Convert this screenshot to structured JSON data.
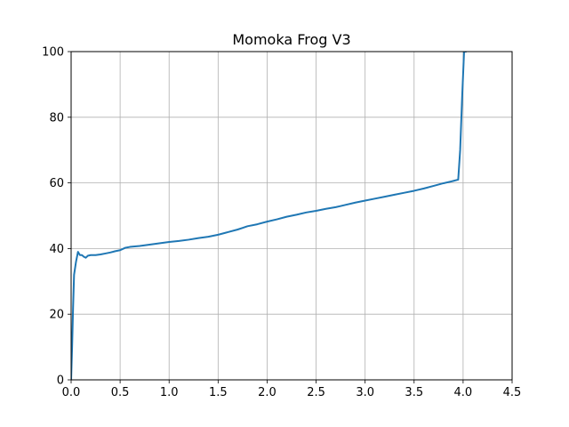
{
  "chart_data": {
    "type": "line",
    "title": "Momoka Frog V3",
    "xlabel": "",
    "ylabel": "",
    "xlim": [
      0,
      4.5
    ],
    "ylim": [
      0,
      100
    ],
    "xticks": [
      0.0,
      0.5,
      1.0,
      1.5,
      2.0,
      2.5,
      3.0,
      3.5,
      4.0,
      4.5
    ],
    "yticks": [
      0,
      20,
      40,
      60,
      80,
      100
    ],
    "xtick_labels": [
      "0.0",
      "0.5",
      "1.0",
      "1.5",
      "2.0",
      "2.5",
      "3.0",
      "3.5",
      "4.0",
      "4.5"
    ],
    "ytick_labels": [
      "0",
      "20",
      "40",
      "60",
      "80",
      "100"
    ],
    "grid": true,
    "series": [
      {
        "color": "#1f77b4",
        "x": [
          0.0,
          0.01,
          0.02,
          0.03,
          0.05,
          0.07,
          0.09,
          0.11,
          0.13,
          0.15,
          0.17,
          0.2,
          0.25,
          0.3,
          0.35,
          0.4,
          0.45,
          0.5,
          0.55,
          0.6,
          0.7,
          0.8,
          0.9,
          1.0,
          1.1,
          1.2,
          1.3,
          1.4,
          1.5,
          1.6,
          1.7,
          1.75,
          1.8,
          1.9,
          2.0,
          2.1,
          2.2,
          2.3,
          2.4,
          2.5,
          2.6,
          2.7,
          2.8,
          2.9,
          3.0,
          3.1,
          3.2,
          3.3,
          3.4,
          3.5,
          3.6,
          3.7,
          3.8,
          3.9,
          3.95,
          3.97,
          3.99,
          4.01,
          4.03
        ],
        "y": [
          0,
          10,
          22,
          32,
          36,
          39,
          38,
          38,
          37.5,
          37.2,
          37.8,
          38,
          38,
          38.2,
          38.5,
          38.8,
          39.2,
          39.5,
          40.2,
          40.5,
          40.8,
          41.2,
          41.6,
          42,
          42.3,
          42.7,
          43.2,
          43.6,
          44.2,
          45,
          45.8,
          46.3,
          46.8,
          47.4,
          48.2,
          48.9,
          49.7,
          50.3,
          51,
          51.5,
          52.1,
          52.6,
          53.3,
          54,
          54.6,
          55.2,
          55.8,
          56.4,
          57,
          57.6,
          58.3,
          59.1,
          59.9,
          60.6,
          61,
          70,
          86,
          100,
          100
        ]
      }
    ]
  }
}
